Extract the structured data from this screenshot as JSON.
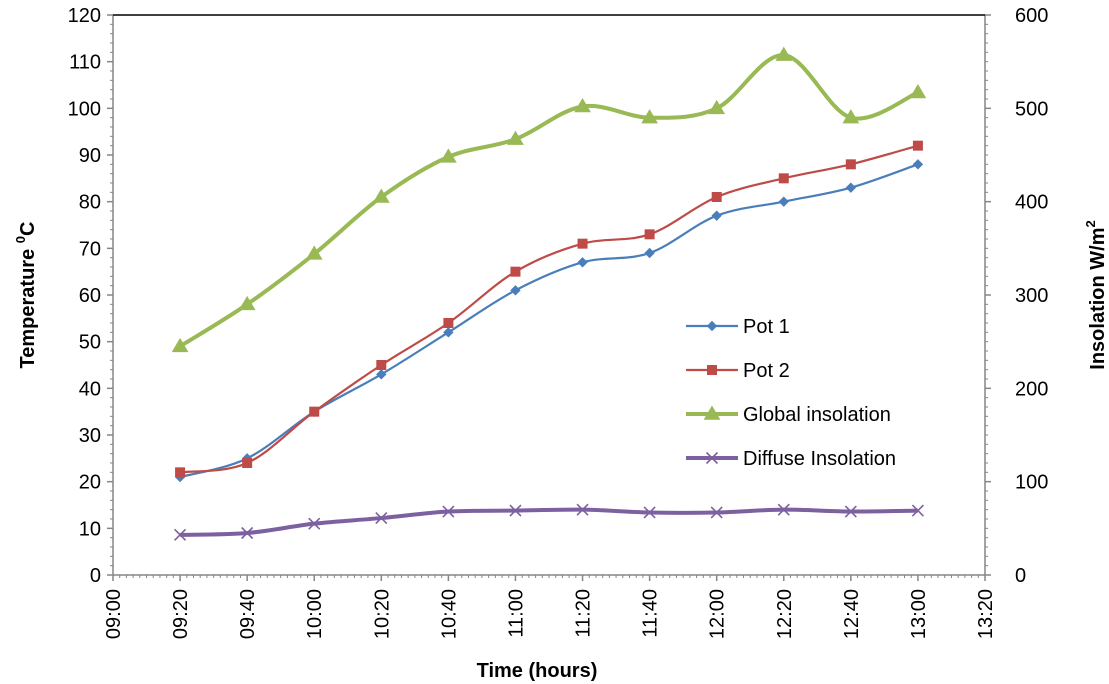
{
  "chart_data": {
    "type": "line",
    "x": [
      "09:20",
      "09:40",
      "10:00",
      "10:20",
      "10:40",
      "11:00",
      "11:20",
      "11:40",
      "12:00",
      "12:20",
      "12:40",
      "13:00"
    ],
    "x_ticks": [
      "09:00",
      "09:20",
      "09:40",
      "10:00",
      "10:20",
      "10:40",
      "11:00",
      "11:20",
      "11:40",
      "12:00",
      "12:20",
      "12:40",
      "13:00",
      "13:20"
    ],
    "xlabel": "Time (hours)",
    "ylabel_left": {
      "main": "Temperature ",
      "sup": "0",
      "tail": "C"
    },
    "ylabel_right": {
      "main": "Insolation W/m",
      "sup": "2"
    },
    "ylim_left": [
      0,
      120
    ],
    "ylim_right": [
      0,
      600
    ],
    "yticks_left": [
      0,
      10,
      20,
      30,
      40,
      50,
      60,
      70,
      80,
      90,
      100,
      110,
      120
    ],
    "yticks_right": [
      0,
      100,
      200,
      300,
      400,
      500,
      600
    ],
    "grid": false,
    "legend_position": "right-center",
    "series": [
      {
        "name": "Pot 1",
        "axis": "left",
        "color": "#4A7EBB",
        "marker": "diamond",
        "values": [
          21,
          25,
          35,
          43,
          52,
          61,
          67,
          69,
          77,
          80,
          83,
          88
        ]
      },
      {
        "name": "Pot 2",
        "axis": "left",
        "color": "#BE4B48",
        "marker": "square",
        "values": [
          22,
          24,
          35,
          45,
          54,
          65,
          71,
          73,
          81,
          85,
          88,
          92
        ]
      },
      {
        "name": "Global insolation",
        "axis": "right",
        "color": "#98B954",
        "marker": "triangle",
        "values": [
          245,
          290,
          344,
          405,
          448,
          467,
          502,
          490,
          500,
          557,
          490,
          517
        ]
      },
      {
        "name": "Diffuse Insolation",
        "axis": "right",
        "color": "#7D60A0",
        "marker": "x",
        "values": [
          43,
          45,
          55,
          61,
          68,
          69,
          70,
          67,
          67,
          70,
          68,
          69
        ]
      }
    ]
  }
}
